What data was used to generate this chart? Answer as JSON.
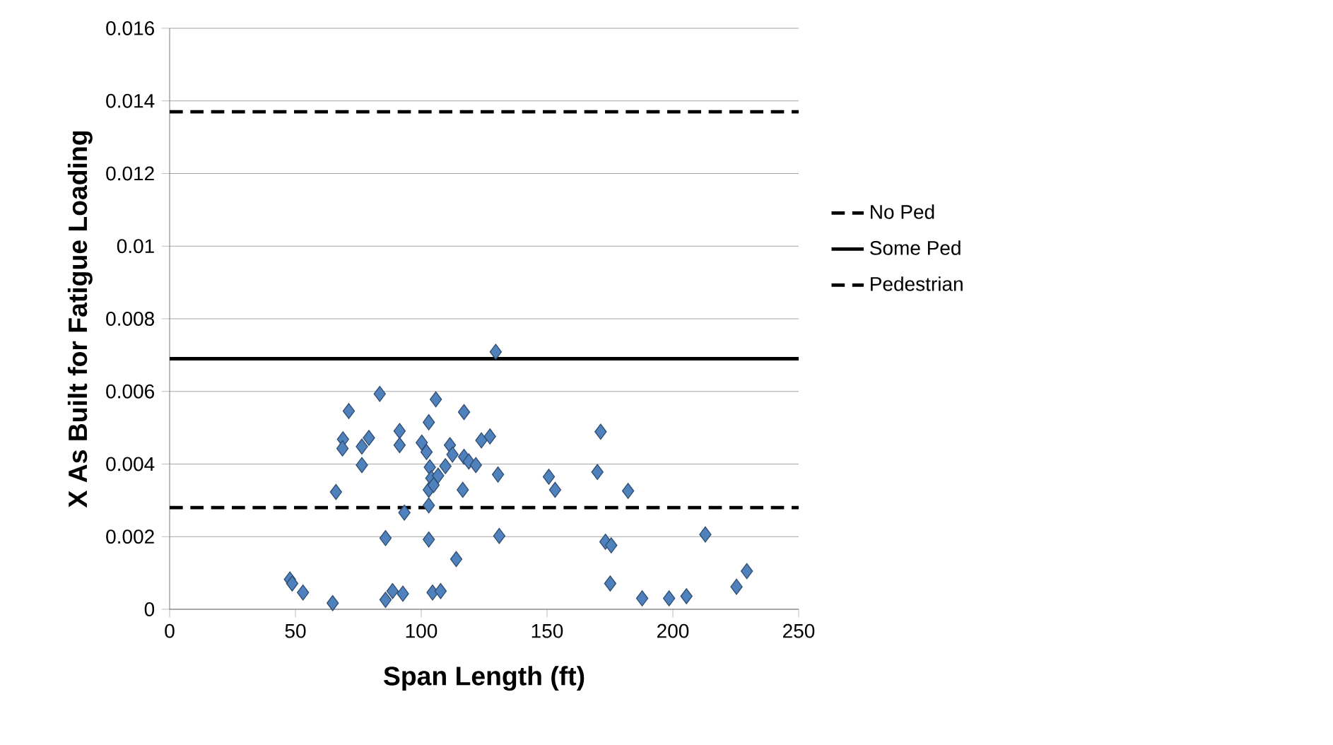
{
  "chart_data": {
    "type": "scatter",
    "xlabel": "Span Length (ft)",
    "ylabel": "X As Built for Fatigue Loading",
    "xlim": [
      0,
      250
    ],
    "xticks": [
      0,
      50,
      100,
      150,
      200,
      250
    ],
    "ylim": [
      0,
      0.016
    ],
    "yticks": [
      0,
      0.002,
      0.004,
      0.006,
      0.008,
      0.01,
      0.012,
      0.014,
      0.016
    ],
    "grid": "y",
    "legend": "right",
    "marker": "diamond",
    "series": [
      {
        "color": "#4f81bd",
        "x": [
          47.8,
          48.7,
          53,
          64.8,
          66.1,
          68.9,
          68.7,
          71.2,
          76.4,
          79.2,
          76.4,
          83.5,
          85.8,
          85.8,
          88.6,
          91.4,
          91.4,
          93.3,
          92.7,
          100.2,
          102.1,
          103,
          105.8,
          103.4,
          104,
          103,
          103,
          103,
          104.5,
          107.7,
          113.9,
          111.4,
          112.4,
          117,
          116.5,
          109.6,
          106.7,
          104.9,
          117,
          118.9,
          121.7,
          123.9,
          127.3,
          129.6,
          130.5,
          131,
          150.7,
          153.2,
          171.3,
          170,
          182.2,
          173.2,
          175.5,
          175.1,
          187.8,
          198.5,
          205.4,
          212.9,
          225.3,
          229.4
        ],
        "values": [
          0.00082,
          0.00071,
          0.00046,
          0.00017,
          0.00323,
          0.00468,
          0.00443,
          0.00546,
          0.00448,
          0.00472,
          0.00397,
          0.00593,
          0.00196,
          0.00026,
          0.0005,
          0.00491,
          0.00452,
          0.00266,
          0.00043,
          0.00459,
          0.00433,
          0.00515,
          0.00578,
          0.00391,
          0.00361,
          0.00329,
          0.00286,
          0.00192,
          0.00046,
          0.0005,
          0.00138,
          0.00452,
          0.00426,
          0.00543,
          0.00329,
          0.00394,
          0.00368,
          0.00342,
          0.0042,
          0.00407,
          0.00397,
          0.00465,
          0.00476,
          0.00709,
          0.00371,
          0.00202,
          0.00365,
          0.00329,
          0.00489,
          0.00378,
          0.00326,
          0.00186,
          0.00176,
          0.00071,
          0.0003,
          0.0003,
          0.00036,
          0.00206,
          0.00062,
          0.00105
        ]
      }
    ],
    "ref_lines": [
      {
        "axis": "y",
        "value": 0.0137,
        "label": "No Ped",
        "line_style": "dashed"
      },
      {
        "axis": "y",
        "value": 0.0069,
        "label": "Some Ped",
        "line_style": "solid"
      },
      {
        "axis": "y",
        "value": 0.0028,
        "label": "Pedestrian",
        "line_style": "dashed"
      }
    ]
  }
}
